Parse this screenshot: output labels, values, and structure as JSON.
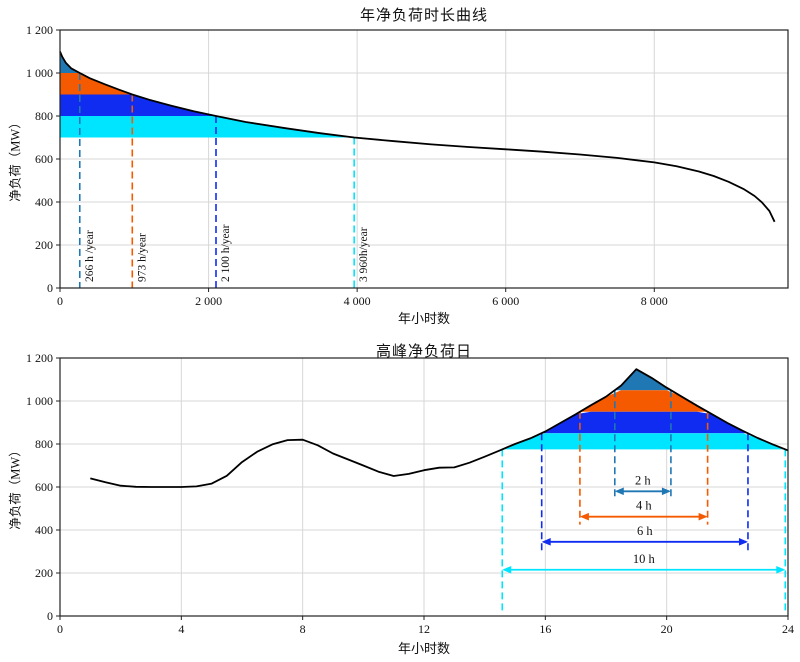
{
  "chart_data": [
    {
      "type": "area",
      "title": "年净负荷时长曲线",
      "xlabel": "年小时数",
      "ylabel": "净负荷（MW）",
      "xlim": [
        0,
        9800
      ],
      "ylim": [
        0,
        1200
      ],
      "grid": true,
      "legend": "none",
      "xticks": {
        "values": [
          0,
          2000,
          4000,
          6000,
          8000
        ],
        "labels": [
          "0",
          "2 000",
          "4 000",
          "6 000",
          "8 000"
        ]
      },
      "yticks": {
        "values": [
          0,
          200,
          400,
          600,
          800,
          1000,
          1200
        ],
        "labels": [
          "0",
          "200",
          "400",
          "600",
          "800",
          "1 000",
          "1 200"
        ]
      },
      "curve_color": "#000000",
      "curve": [
        [
          0,
          1100
        ],
        [
          30,
          1076
        ],
        [
          80,
          1047
        ],
        [
          150,
          1022
        ],
        [
          266,
          1000
        ],
        [
          400,
          976
        ],
        [
          600,
          948
        ],
        [
          800,
          922
        ],
        [
          973,
          900
        ],
        [
          1200,
          876
        ],
        [
          1500,
          848
        ],
        [
          1800,
          822
        ],
        [
          2100,
          800
        ],
        [
          2500,
          772
        ],
        [
          3000,
          745
        ],
        [
          3500,
          720
        ],
        [
          3960,
          700
        ],
        [
          4500,
          683
        ],
        [
          5000,
          668
        ],
        [
          5500,
          656
        ],
        [
          6000,
          645
        ],
        [
          6500,
          634
        ],
        [
          7000,
          621
        ],
        [
          7500,
          605
        ],
        [
          8000,
          584
        ],
        [
          8300,
          566
        ],
        [
          8600,
          542
        ],
        [
          8800,
          521
        ],
        [
          9000,
          494
        ],
        [
          9200,
          461
        ],
        [
          9350,
          428
        ],
        [
          9450,
          398
        ],
        [
          9550,
          358
        ],
        [
          9620,
          308
        ]
      ],
      "bands": [
        {
          "name": "band-above-1000MW",
          "color": "#1f77b4",
          "low": 1000,
          "high": 1200,
          "x1": 0,
          "x2": 266
        },
        {
          "name": "band-900-1000MW",
          "color": "#f55a00",
          "low": 900,
          "high": 1000,
          "x1": 0,
          "x2": 973
        },
        {
          "name": "band-800-900MW",
          "color": "#0f2cf0",
          "low": 800,
          "high": 900,
          "x1": 0,
          "x2": 2100
        },
        {
          "name": "band-700-800MW",
          "color": "#00e5ff",
          "low": 700,
          "high": 800,
          "x1": 0,
          "x2": 3960
        }
      ],
      "vlines": [
        {
          "x": 266,
          "top": 1000,
          "bottom": 0,
          "color": "#1f77b4",
          "label": "266 h /year"
        },
        {
          "x": 973,
          "top": 900,
          "bottom": 0,
          "color": "#f55a00",
          "label": "973 h/year"
        },
        {
          "x": 2100,
          "top": 800,
          "bottom": 0,
          "color": "#0f2cf0",
          "label": "2 100 h/year"
        },
        {
          "x": 3960,
          "top": 700,
          "bottom": 0,
          "color": "#00e5ff",
          "label": "3 960h/year"
        }
      ],
      "arrows": []
    },
    {
      "type": "line",
      "title": "高峰净负荷日",
      "xlabel": "年小时数",
      "ylabel": "净负荷（MW）",
      "xlim": [
        0,
        24
      ],
      "ylim": [
        0,
        1200
      ],
      "grid": true,
      "legend": "none",
      "xticks": {
        "values": [
          0,
          4,
          8,
          12,
          16,
          20,
          24
        ],
        "labels": [
          "0",
          "4",
          "8",
          "12",
          "16",
          "20",
          "24"
        ]
      },
      "yticks": {
        "values": [
          0,
          200,
          400,
          600,
          800,
          1000,
          1200
        ],
        "labels": [
          "0",
          "200",
          "400",
          "600",
          "800",
          "1 000",
          "1 200"
        ]
      },
      "curve_color": "#000000",
      "curve": [
        [
          1,
          640
        ],
        [
          1.5,
          622
        ],
        [
          2,
          606
        ],
        [
          2.5,
          601
        ],
        [
          3,
          600
        ],
        [
          4,
          600
        ],
        [
          4.5,
          603
        ],
        [
          5,
          616
        ],
        [
          5.5,
          652
        ],
        [
          6,
          716
        ],
        [
          6.5,
          764
        ],
        [
          7,
          798
        ],
        [
          7.5,
          818
        ],
        [
          8,
          820
        ],
        [
          8.5,
          794
        ],
        [
          9,
          756
        ],
        [
          9.5,
          728
        ],
        [
          10,
          700
        ],
        [
          10.5,
          671
        ],
        [
          11,
          651
        ],
        [
          11.5,
          661
        ],
        [
          12,
          678
        ],
        [
          12.5,
          690
        ],
        [
          13,
          691
        ],
        [
          13.5,
          713
        ],
        [
          14,
          741
        ],
        [
          14.5,
          770
        ],
        [
          15,
          800
        ],
        [
          15.5,
          826
        ],
        [
          16,
          858
        ],
        [
          16.5,
          898
        ],
        [
          17,
          938
        ],
        [
          17.5,
          980
        ],
        [
          18,
          1020
        ],
        [
          18.5,
          1072
        ],
        [
          19,
          1148
        ],
        [
          19.5,
          1108
        ],
        [
          20,
          1062
        ],
        [
          20.5,
          1020
        ],
        [
          21,
          978
        ],
        [
          21.5,
          938
        ],
        [
          22,
          898
        ],
        [
          22.5,
          862
        ],
        [
          23,
          828
        ],
        [
          23.5,
          798
        ],
        [
          24,
          770
        ]
      ],
      "bands": [
        {
          "name": "peak-band-above-1050MW",
          "color": "#1f77b4",
          "low": 1050,
          "high": 1200,
          "x1": 18.29,
          "x2": 20.14
        },
        {
          "name": "peak-band-950-1050MW",
          "color": "#f55a00",
          "low": 950,
          "high": 1050,
          "x1": 17.14,
          "x2": 21.35
        },
        {
          "name": "peak-band-850-950MW",
          "color": "#0f2cf0",
          "low": 850,
          "high": 950,
          "x1": 15.88,
          "x2": 22.68
        },
        {
          "name": "peak-band-775-850MW",
          "color": "#00e5ff",
          "low": 775,
          "high": 850,
          "x1": 14.58,
          "x2": 23.91
        }
      ],
      "vlines": [
        {
          "x": 18.29,
          "top": 1050,
          "bottom": 545,
          "color": "#1f77b4",
          "label": ""
        },
        {
          "x": 20.14,
          "top": 1050,
          "bottom": 545,
          "color": "#1f77b4",
          "label": ""
        },
        {
          "x": 17.14,
          "top": 950,
          "bottom": 425,
          "color": "#f55a00",
          "label": ""
        },
        {
          "x": 21.35,
          "top": 950,
          "bottom": 425,
          "color": "#f55a00",
          "label": ""
        },
        {
          "x": 15.88,
          "top": 850,
          "bottom": 300,
          "color": "#0f2cf0",
          "label": ""
        },
        {
          "x": 22.68,
          "top": 850,
          "bottom": 300,
          "color": "#0f2cf0",
          "label": ""
        },
        {
          "x": 14.58,
          "top": 775,
          "bottom": 15,
          "color": "#00e5ff",
          "label": ""
        },
        {
          "x": 23.91,
          "top": 775,
          "bottom": 15,
          "color": "#00e5ff",
          "label": ""
        }
      ],
      "arrows": [
        {
          "x1": 18.29,
          "x2": 20.14,
          "y": 580,
          "color": "#1f77b4",
          "label": "2 h"
        },
        {
          "x1": 17.14,
          "x2": 21.35,
          "y": 462,
          "color": "#f55a00",
          "label": "4 h"
        },
        {
          "x1": 15.88,
          "x2": 22.68,
          "y": 345,
          "color": "#0f2cf0",
          "label": "6 h"
        },
        {
          "x1": 14.58,
          "x2": 23.91,
          "y": 215,
          "color": "#00e5ff",
          "label": "10 h"
        }
      ]
    }
  ],
  "colors": {
    "storage_2h": "#1f77b4",
    "storage_4h": "#f55a00",
    "storage_6h": "#0f2cf0",
    "storage_10h": "#00e5ff",
    "grid": "#d7d7d7",
    "curve": "#000000"
  }
}
